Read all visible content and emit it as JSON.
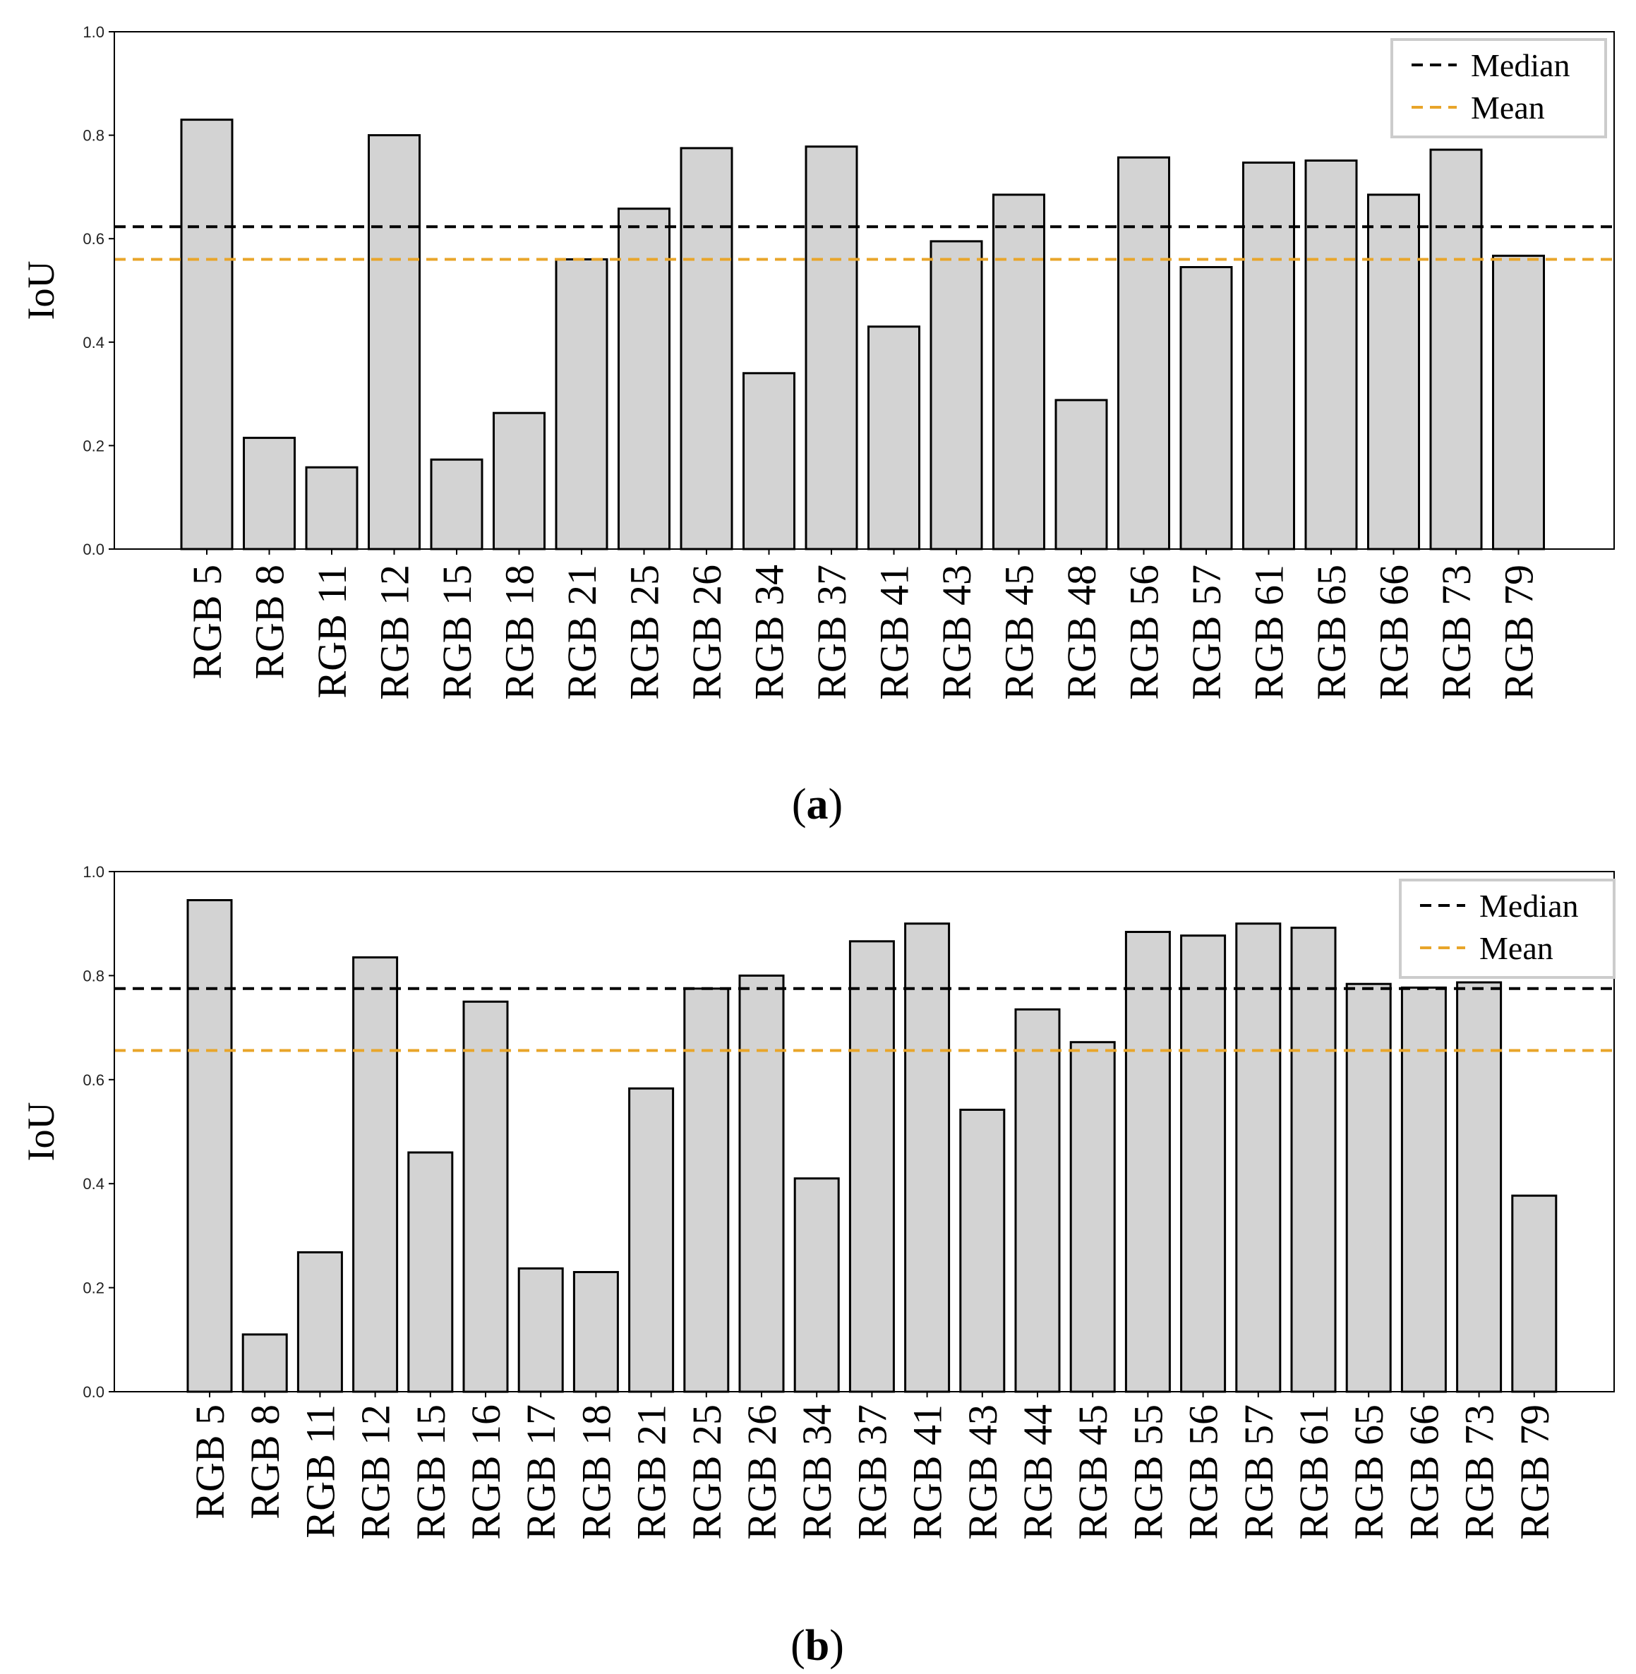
{
  "chart_data": [
    {
      "type": "bar",
      "panel": "a",
      "caption": {
        "open": "(",
        "letter": "a",
        "close": ")"
      },
      "ylabel": "IoU",
      "xlabel": "",
      "ylim": [
        0,
        1.0
      ],
      "yticks": [
        "0.0",
        "0.2",
        "0.4",
        "0.6",
        "0.8",
        "1.0"
      ],
      "legend_position": "top-right",
      "categories": [
        "RGB 5",
        "RGB 8",
        "RGB 11",
        "RGB 12",
        "RGB 15",
        "RGB 18",
        "RGB 21",
        "RGB 25",
        "RGB 26",
        "RGB 34",
        "RGB 37",
        "RGB 41",
        "RGB 43",
        "RGB 45",
        "RGB 48",
        "RGB 56",
        "RGB 57",
        "RGB 61",
        "RGB 65",
        "RGB 66",
        "RGB 73",
        "RGB 79"
      ],
      "values": [
        0.83,
        0.215,
        0.158,
        0.8,
        0.173,
        0.263,
        0.56,
        0.658,
        0.775,
        0.34,
        0.778,
        0.43,
        0.595,
        0.685,
        0.288,
        0.757,
        0.545,
        0.747,
        0.751,
        0.685,
        0.772,
        0.567
      ],
      "reference_lines": [
        {
          "name": "Median",
          "value": 0.623,
          "color": "#000000"
        },
        {
          "name": "Mean",
          "value": 0.56,
          "color": "#e8a52a"
        }
      ]
    },
    {
      "type": "bar",
      "panel": "b",
      "caption": {
        "open": "(",
        "letter": "b",
        "close": ")"
      },
      "ylabel": "IoU",
      "xlabel": "",
      "ylim": [
        0,
        1.0
      ],
      "yticks": [
        "0.0",
        "0.2",
        "0.4",
        "0.6",
        "0.8",
        "1.0"
      ],
      "legend_position": "top-right",
      "categories": [
        "RGB 5",
        "RGB 8",
        "RGB 11",
        "RGB 12",
        "RGB 15",
        "RGB 16",
        "RGB 17",
        "RGB 18",
        "RGB 21",
        "RGB 25",
        "RGB 26",
        "RGB 34",
        "RGB 37",
        "RGB 41",
        "RGB 43",
        "RGB 44",
        "RGB 45",
        "RGB 55",
        "RGB 56",
        "RGB 57",
        "RGB 61",
        "RGB 65",
        "RGB 66",
        "RGB 73",
        "RGB 79"
      ],
      "values": [
        0.945,
        0.11,
        0.268,
        0.835,
        0.46,
        0.75,
        0.237,
        0.23,
        0.583,
        0.775,
        0.8,
        0.41,
        0.866,
        0.9,
        0.542,
        0.735,
        0.672,
        0.884,
        0.877,
        0.9,
        0.892,
        0.784,
        0.777,
        0.787,
        0.377
      ],
      "reference_lines": [
        {
          "name": "Median",
          "value": 0.775,
          "color": "#000000"
        },
        {
          "name": "Mean",
          "value": 0.656,
          "color": "#e8a52a"
        }
      ]
    }
  ],
  "style": {
    "bar_fill": "#d3d3d3",
    "bar_edge": "#000000",
    "axis_color": "#000000"
  }
}
